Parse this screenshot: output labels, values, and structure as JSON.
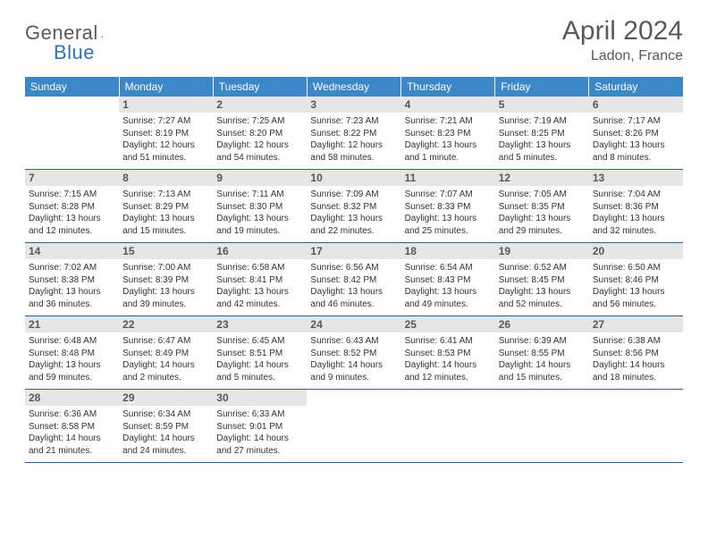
{
  "brand": {
    "t1": "General",
    "t2": "Blue"
  },
  "title": "April 2024",
  "location": "Ladon, France",
  "colors": {
    "header_bg": "#3c87c7",
    "header_fg": "#ffffff",
    "daynum_bg": "#e6e6e6",
    "daynum_fg": "#575757",
    "rule": "#2d5f8f",
    "text": "#333333",
    "title_fg": "#5a5a5a",
    "brand_gray": "#5a5a5a",
    "brand_blue": "#2d73b9"
  },
  "dow": [
    "Sunday",
    "Monday",
    "Tuesday",
    "Wednesday",
    "Thursday",
    "Friday",
    "Saturday"
  ],
  "weeks": [
    [
      {
        "day": "",
        "lines": []
      },
      {
        "day": "1",
        "lines": [
          "Sunrise: 7:27 AM",
          "Sunset: 8:19 PM",
          "Daylight: 12 hours",
          "and 51 minutes."
        ]
      },
      {
        "day": "2",
        "lines": [
          "Sunrise: 7:25 AM",
          "Sunset: 8:20 PM",
          "Daylight: 12 hours",
          "and 54 minutes."
        ]
      },
      {
        "day": "3",
        "lines": [
          "Sunrise: 7:23 AM",
          "Sunset: 8:22 PM",
          "Daylight: 12 hours",
          "and 58 minutes."
        ]
      },
      {
        "day": "4",
        "lines": [
          "Sunrise: 7:21 AM",
          "Sunset: 8:23 PM",
          "Daylight: 13 hours",
          "and 1 minute."
        ]
      },
      {
        "day": "5",
        "lines": [
          "Sunrise: 7:19 AM",
          "Sunset: 8:25 PM",
          "Daylight: 13 hours",
          "and 5 minutes."
        ]
      },
      {
        "day": "6",
        "lines": [
          "Sunrise: 7:17 AM",
          "Sunset: 8:26 PM",
          "Daylight: 13 hours",
          "and 8 minutes."
        ]
      }
    ],
    [
      {
        "day": "7",
        "lines": [
          "Sunrise: 7:15 AM",
          "Sunset: 8:28 PM",
          "Daylight: 13 hours",
          "and 12 minutes."
        ]
      },
      {
        "day": "8",
        "lines": [
          "Sunrise: 7:13 AM",
          "Sunset: 8:29 PM",
          "Daylight: 13 hours",
          "and 15 minutes."
        ]
      },
      {
        "day": "9",
        "lines": [
          "Sunrise: 7:11 AM",
          "Sunset: 8:30 PM",
          "Daylight: 13 hours",
          "and 19 minutes."
        ]
      },
      {
        "day": "10",
        "lines": [
          "Sunrise: 7:09 AM",
          "Sunset: 8:32 PM",
          "Daylight: 13 hours",
          "and 22 minutes."
        ]
      },
      {
        "day": "11",
        "lines": [
          "Sunrise: 7:07 AM",
          "Sunset: 8:33 PM",
          "Daylight: 13 hours",
          "and 25 minutes."
        ]
      },
      {
        "day": "12",
        "lines": [
          "Sunrise: 7:05 AM",
          "Sunset: 8:35 PM",
          "Daylight: 13 hours",
          "and 29 minutes."
        ]
      },
      {
        "day": "13",
        "lines": [
          "Sunrise: 7:04 AM",
          "Sunset: 8:36 PM",
          "Daylight: 13 hours",
          "and 32 minutes."
        ]
      }
    ],
    [
      {
        "day": "14",
        "lines": [
          "Sunrise: 7:02 AM",
          "Sunset: 8:38 PM",
          "Daylight: 13 hours",
          "and 36 minutes."
        ]
      },
      {
        "day": "15",
        "lines": [
          "Sunrise: 7:00 AM",
          "Sunset: 8:39 PM",
          "Daylight: 13 hours",
          "and 39 minutes."
        ]
      },
      {
        "day": "16",
        "lines": [
          "Sunrise: 6:58 AM",
          "Sunset: 8:41 PM",
          "Daylight: 13 hours",
          "and 42 minutes."
        ]
      },
      {
        "day": "17",
        "lines": [
          "Sunrise: 6:56 AM",
          "Sunset: 8:42 PM",
          "Daylight: 13 hours",
          "and 46 minutes."
        ]
      },
      {
        "day": "18",
        "lines": [
          "Sunrise: 6:54 AM",
          "Sunset: 8:43 PM",
          "Daylight: 13 hours",
          "and 49 minutes."
        ]
      },
      {
        "day": "19",
        "lines": [
          "Sunrise: 6:52 AM",
          "Sunset: 8:45 PM",
          "Daylight: 13 hours",
          "and 52 minutes."
        ]
      },
      {
        "day": "20",
        "lines": [
          "Sunrise: 6:50 AM",
          "Sunset: 8:46 PM",
          "Daylight: 13 hours",
          "and 56 minutes."
        ]
      }
    ],
    [
      {
        "day": "21",
        "lines": [
          "Sunrise: 6:48 AM",
          "Sunset: 8:48 PM",
          "Daylight: 13 hours",
          "and 59 minutes."
        ]
      },
      {
        "day": "22",
        "lines": [
          "Sunrise: 6:47 AM",
          "Sunset: 8:49 PM",
          "Daylight: 14 hours",
          "and 2 minutes."
        ]
      },
      {
        "day": "23",
        "lines": [
          "Sunrise: 6:45 AM",
          "Sunset: 8:51 PM",
          "Daylight: 14 hours",
          "and 5 minutes."
        ]
      },
      {
        "day": "24",
        "lines": [
          "Sunrise: 6:43 AM",
          "Sunset: 8:52 PM",
          "Daylight: 14 hours",
          "and 9 minutes."
        ]
      },
      {
        "day": "25",
        "lines": [
          "Sunrise: 6:41 AM",
          "Sunset: 8:53 PM",
          "Daylight: 14 hours",
          "and 12 minutes."
        ]
      },
      {
        "day": "26",
        "lines": [
          "Sunrise: 6:39 AM",
          "Sunset: 8:55 PM",
          "Daylight: 14 hours",
          "and 15 minutes."
        ]
      },
      {
        "day": "27",
        "lines": [
          "Sunrise: 6:38 AM",
          "Sunset: 8:56 PM",
          "Daylight: 14 hours",
          "and 18 minutes."
        ]
      }
    ],
    [
      {
        "day": "28",
        "lines": [
          "Sunrise: 6:36 AM",
          "Sunset: 8:58 PM",
          "Daylight: 14 hours",
          "and 21 minutes."
        ]
      },
      {
        "day": "29",
        "lines": [
          "Sunrise: 6:34 AM",
          "Sunset: 8:59 PM",
          "Daylight: 14 hours",
          "and 24 minutes."
        ]
      },
      {
        "day": "30",
        "lines": [
          "Sunrise: 6:33 AM",
          "Sunset: 9:01 PM",
          "Daylight: 14 hours",
          "and 27 minutes."
        ]
      },
      {
        "day": "",
        "lines": []
      },
      {
        "day": "",
        "lines": []
      },
      {
        "day": "",
        "lines": []
      },
      {
        "day": "",
        "lines": []
      }
    ]
  ]
}
